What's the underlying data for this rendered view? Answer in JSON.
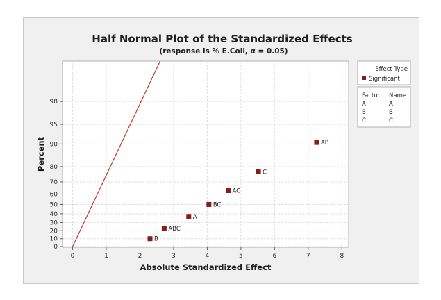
{
  "chart_data": {
    "type": "scatter",
    "title": "Half Normal Plot of the Standardized Effects",
    "subtitle": "(response is % E.Coli, α = 0.05)",
    "xlabel": "Absolute Standardized Effect",
    "ylabel": "Percent",
    "xlim": [
      -0.3,
      8.2
    ],
    "x_ticks": [
      0,
      1,
      2,
      3,
      4,
      5,
      6,
      7,
      8
    ],
    "y_ticks": [
      0,
      10,
      20,
      30,
      40,
      50,
      60,
      70,
      80,
      90,
      95,
      98
    ],
    "y_scale": "half-normal probability",
    "grid": true,
    "points": [
      {
        "label": "B",
        "x": 2.3,
        "y": 10
      },
      {
        "label": "ABC",
        "x": 2.72,
        "y": 23
      },
      {
        "label": "A",
        "x": 3.45,
        "y": 37
      },
      {
        "label": "BC",
        "x": 4.05,
        "y": 50
      },
      {
        "label": "AC",
        "x": 4.62,
        "y": 63
      },
      {
        "label": "C",
        "x": 5.52,
        "y": 77
      },
      {
        "label": "AB",
        "x": 7.25,
        "y": 90.5
      }
    ],
    "reference_line": {
      "x_start": 0,
      "y_start": 0,
      "slope_description": "steep red reference line"
    },
    "legend": {
      "placement": "right",
      "effect_type_title": "Effect Type",
      "effect_types": [
        {
          "name": "Significant",
          "color": "#8b1a1a"
        }
      ],
      "factor_header": "Factor",
      "name_header": "Name",
      "factors": [
        {
          "factor": "A",
          "name": "A"
        },
        {
          "factor": "B",
          "name": "B"
        },
        {
          "factor": "C",
          "name": "C"
        }
      ]
    },
    "colors": {
      "point": "#8b1a1a",
      "line": "#c0392b"
    }
  }
}
